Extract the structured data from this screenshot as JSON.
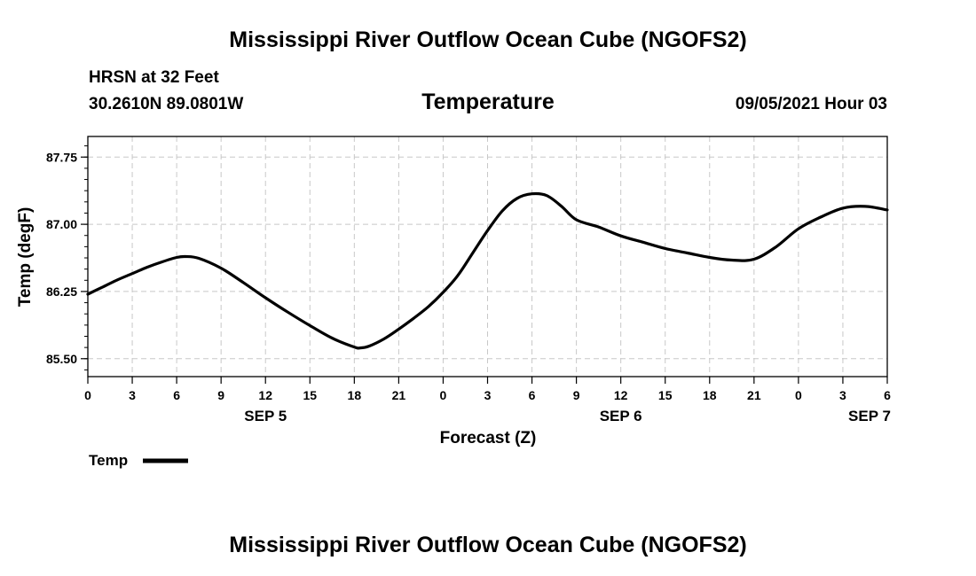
{
  "title_top": "Mississippi River Outflow Ocean Cube (NGOFS2)",
  "title_bottom": "Mississippi River Outflow Ocean Cube (NGOFS2)",
  "station": "HRSN at 32 Feet",
  "coords": "30.2610N  89.0801W",
  "datetime": "09/05/2021 Hour 03",
  "chart_data": {
    "type": "line",
    "title": "Temperature",
    "xlabel": "Forecast (Z)",
    "ylabel": "Temp (degF)",
    "xlim": [
      0,
      54
    ],
    "ylim": [
      85.3,
      87.98
    ],
    "yticks": [
      85.5,
      86.25,
      87.0,
      87.75
    ],
    "ytick_labels": [
      "85.50",
      "86.25",
      "87.00",
      "87.75"
    ],
    "xticks": [
      0,
      3,
      6,
      9,
      12,
      15,
      18,
      21,
      24,
      27,
      30,
      33,
      36,
      39,
      42,
      45,
      48,
      51,
      54
    ],
    "xtick_labels": [
      "0",
      "3",
      "6",
      "9",
      "12",
      "15",
      "18",
      "21",
      "0",
      "3",
      "6",
      "9",
      "12",
      "15",
      "18",
      "21",
      "0",
      "3",
      "6"
    ],
    "day_labels": [
      {
        "hour": 12,
        "label": "SEP 5"
      },
      {
        "hour": 36,
        "label": "SEP 6"
      },
      {
        "hour": 52.8,
        "label": "SEP 7"
      }
    ],
    "grid": true,
    "legend": [
      {
        "name": "Temp",
        "position": "bottom-left"
      }
    ],
    "series": [
      {
        "name": "Temp",
        "x": [
          0,
          1,
          2,
          3,
          4,
          5,
          6,
          6.6,
          7.5,
          9,
          10.5,
          12,
          13.5,
          15,
          16.5,
          18,
          18.4,
          19,
          20,
          21,
          22,
          23,
          24,
          25,
          26,
          27,
          28,
          29,
          30,
          31,
          32,
          33,
          34.5,
          36,
          37.5,
          39,
          40.5,
          42,
          43.5,
          45,
          46.5,
          48,
          49.5,
          51,
          52.5,
          54
        ],
        "values": [
          86.22,
          86.3,
          86.38,
          86.45,
          86.52,
          86.58,
          86.63,
          86.64,
          86.62,
          86.51,
          86.35,
          86.18,
          86.02,
          85.87,
          85.73,
          85.63,
          85.62,
          85.64,
          85.72,
          85.83,
          85.95,
          86.08,
          86.24,
          86.43,
          86.68,
          86.93,
          87.15,
          87.29,
          87.34,
          87.32,
          87.2,
          87.05,
          86.97,
          86.87,
          86.8,
          86.73,
          86.68,
          86.63,
          86.6,
          86.61,
          86.75,
          86.95,
          87.08,
          87.18,
          87.2,
          87.16
        ]
      }
    ]
  }
}
